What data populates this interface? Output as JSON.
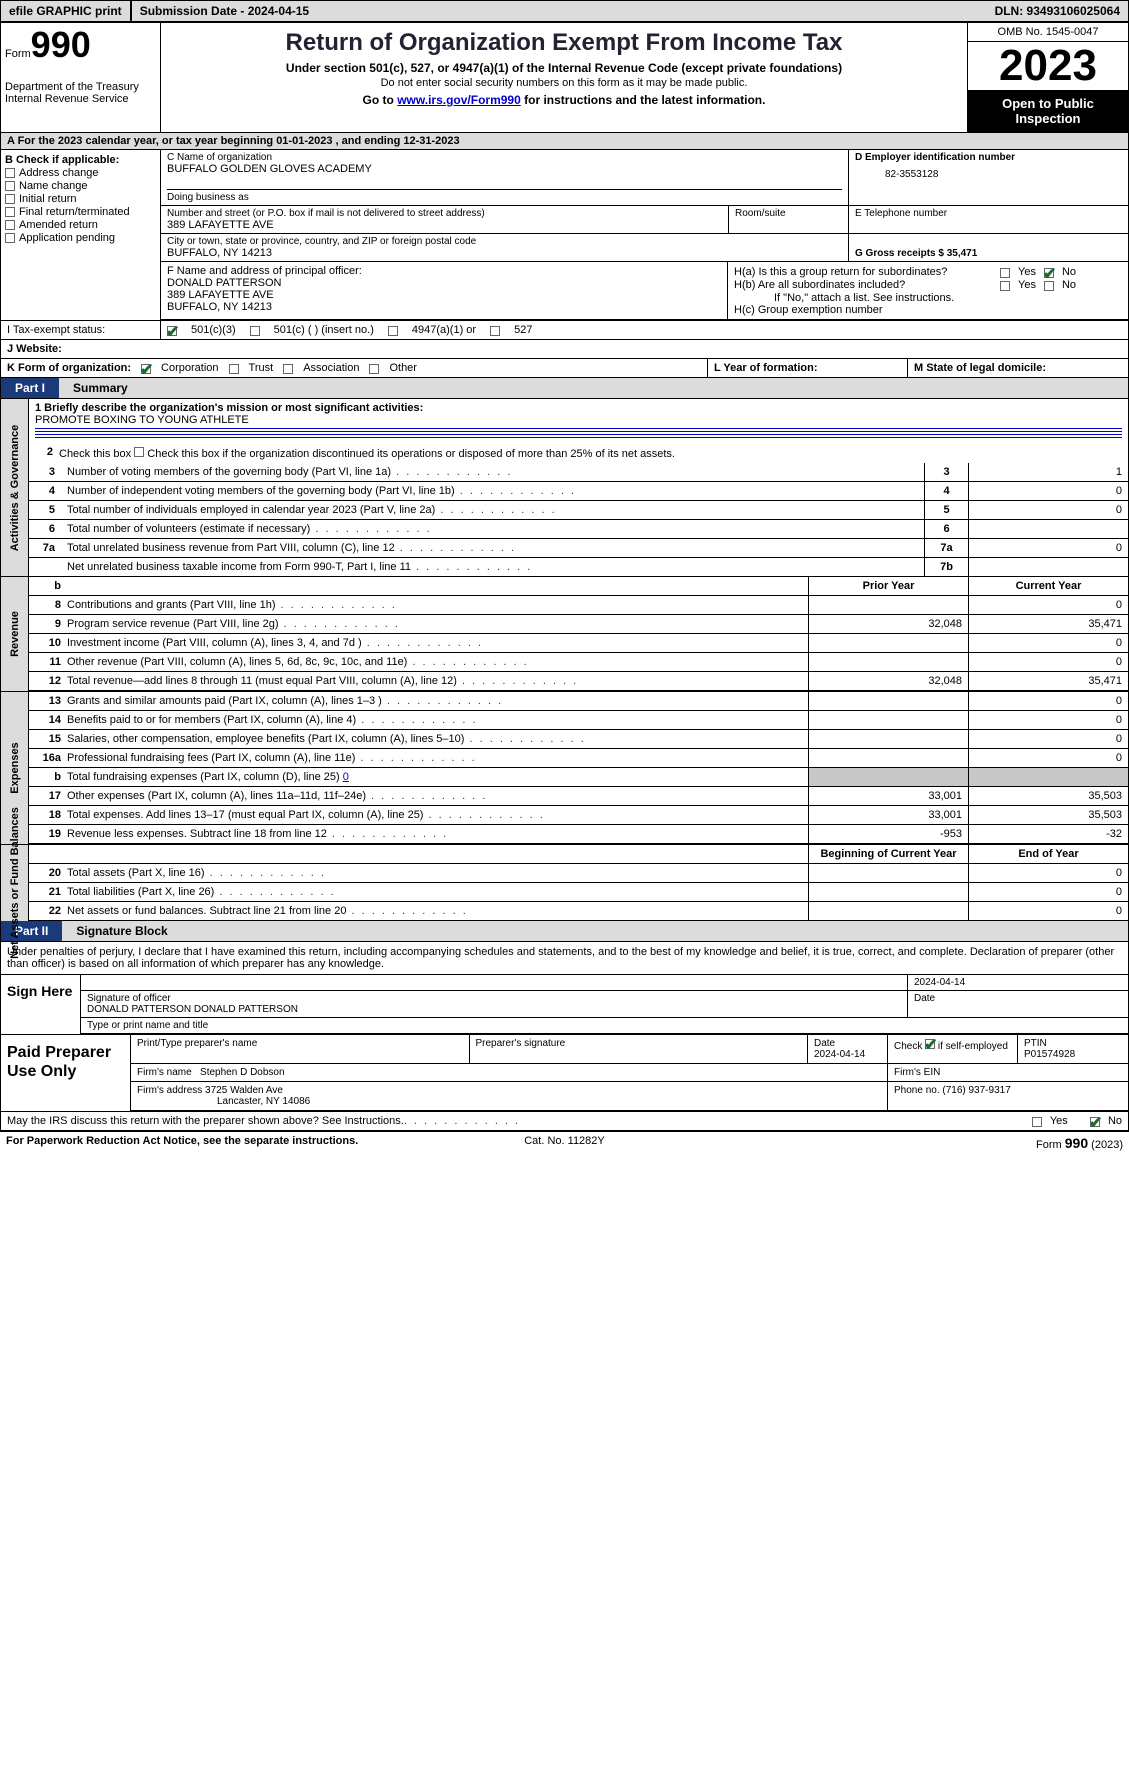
{
  "header": {
    "efile_btn": "efile GRAPHIC print",
    "submission_label": "Submission Date - 2024-04-15",
    "dln_label": "DLN: 93493106025064"
  },
  "top": {
    "form_word": "Form",
    "form_num": "990",
    "dept": "Department of the Treasury\nInternal Revenue Service",
    "title": "Return of Organization Exempt From Income Tax",
    "sub1": "Under section 501(c), 527, or 4947(a)(1) of the Internal Revenue Code (except private foundations)",
    "sub2": "Do not enter social security numbers on this form as it may be made public.",
    "sub3_pre": "Go to ",
    "sub3_link": "www.irs.gov/Form990",
    "sub3_post": " for instructions and the latest information.",
    "omb": "OMB No. 1545-0047",
    "year": "2023",
    "open_pub": "Open to Public Inspection"
  },
  "rowA": "A For the 2023 calendar year, or tax year beginning 01-01-2023   , and ending 12-31-2023",
  "colB": {
    "header": "B Check if applicable:",
    "items": [
      "Address change",
      "Name change",
      "Initial return",
      "Final return/terminated",
      "Amended return",
      "Application pending"
    ]
  },
  "boxC": {
    "name_lbl": "C Name of organization",
    "name_val": "BUFFALO GOLDEN GLOVES ACADEMY",
    "dba_lbl": "Doing business as",
    "street_lbl": "Number and street (or P.O. box if mail is not delivered to street address)",
    "street_val": "389 LAFAYETTE AVE",
    "room_lbl": "Room/suite",
    "city_lbl": "City or town, state or province, country, and ZIP or foreign postal code",
    "city_val": "BUFFALO, NY  14213"
  },
  "boxD": {
    "lbl": "D Employer identification number",
    "val": "82-3553128"
  },
  "boxE": {
    "lbl": "E Telephone number"
  },
  "boxG": {
    "lbl": "G Gross receipts $ 35,471"
  },
  "boxF": {
    "lbl": "F  Name and address of principal officer:",
    "l1": "DONALD PATTERSON",
    "l2": "389 LAFAYETTE AVE",
    "l3": "BUFFALO, NY  14213"
  },
  "boxH": {
    "ha_lbl": "H(a)  Is this a group return for subordinates?",
    "hb_lbl": "H(b)  Are all subordinates included?",
    "hb_note": "If \"No,\" attach a list. See instructions.",
    "hc_lbl": "H(c)  Group exemption number",
    "yes": "Yes",
    "no": "No"
  },
  "rowI": {
    "lbl": "I     Tax-exempt status:",
    "opts": [
      "501(c)(3)",
      "501(c) (  ) (insert no.)",
      "4947(a)(1) or",
      "527"
    ]
  },
  "rowJ": {
    "lbl": "J    Website:"
  },
  "rowK": {
    "lbl": "K Form of organization:",
    "opts": [
      "Corporation",
      "Trust",
      "Association",
      "Other"
    ]
  },
  "rowL": "L Year of formation:",
  "rowM": "M State of legal domicile:",
  "part1": {
    "tab": "Part I",
    "title": "Summary"
  },
  "ag": {
    "label": "Activities & Governance",
    "l1_pre": "1   Briefly describe the organization's mission or most significant activities:",
    "l1_val": "PROMOTE BOXING TO YOUNG ATHLETE",
    "l2": "Check this box      if the organization discontinued its operations or disposed of more than 25% of its net assets.",
    "lines": [
      {
        "n": "3",
        "t": "Number of voting members of the governing body (Part VI, line 1a)",
        "c": "3",
        "v": "1"
      },
      {
        "n": "4",
        "t": "Number of independent voting members of the governing body (Part VI, line 1b)",
        "c": "4",
        "v": "0"
      },
      {
        "n": "5",
        "t": "Total number of individuals employed in calendar year 2023 (Part V, line 2a)",
        "c": "5",
        "v": "0"
      },
      {
        "n": "6",
        "t": "Total number of volunteers (estimate if necessary)",
        "c": "6",
        "v": ""
      },
      {
        "n": "7a",
        "t": "Total unrelated business revenue from Part VIII, column (C), line 12",
        "c": "7a",
        "v": "0"
      },
      {
        "n": "",
        "t": "Net unrelated business taxable income from Form 990-T, Part I, line 11",
        "c": "7b",
        "v": ""
      }
    ]
  },
  "rev": {
    "label": "Revenue",
    "th_prior": "Prior Year",
    "th_curr": "Current Year",
    "rows": [
      {
        "n": "8",
        "t": "Contributions and grants (Part VIII, line 1h)",
        "p": "",
        "c": "0"
      },
      {
        "n": "9",
        "t": "Program service revenue (Part VIII, line 2g)",
        "p": "32,048",
        "c": "35,471"
      },
      {
        "n": "10",
        "t": "Investment income (Part VIII, column (A), lines 3, 4, and 7d )",
        "p": "",
        "c": "0"
      },
      {
        "n": "11",
        "t": "Other revenue (Part VIII, column (A), lines 5, 6d, 8c, 9c, 10c, and 11e)",
        "p": "",
        "c": "0"
      },
      {
        "n": "12",
        "t": "Total revenue—add lines 8 through 11 (must equal Part VIII, column (A), line 12)",
        "p": "32,048",
        "c": "35,471"
      }
    ]
  },
  "exp": {
    "label": "Expenses",
    "rows": [
      {
        "n": "13",
        "t": "Grants and similar amounts paid (Part IX, column (A), lines 1–3 )",
        "p": "",
        "c": "0"
      },
      {
        "n": "14",
        "t": "Benefits paid to or for members (Part IX, column (A), line 4)",
        "p": "",
        "c": "0"
      },
      {
        "n": "15",
        "t": "Salaries, other compensation, employee benefits (Part IX, column (A), lines 5–10)",
        "p": "",
        "c": "0"
      },
      {
        "n": "16a",
        "t": "Professional fundraising fees (Part IX, column (A), line 11e)",
        "p": "",
        "c": "0"
      },
      {
        "n": "b",
        "t": "Total fundraising expenses (Part IX, column (D), line 25) ",
        "p": "shade",
        "c": "shade",
        "link": "0"
      },
      {
        "n": "17",
        "t": "Other expenses (Part IX, column (A), lines 11a–11d, 11f–24e)",
        "p": "33,001",
        "c": "35,503"
      },
      {
        "n": "18",
        "t": "Total expenses. Add lines 13–17 (must equal Part IX, column (A), line 25)",
        "p": "33,001",
        "c": "35,503"
      },
      {
        "n": "19",
        "t": "Revenue less expenses. Subtract line 18 from line 12",
        "p": "-953",
        "c": "-32"
      }
    ]
  },
  "net": {
    "label": "Net Assets or Fund Balances",
    "th_beg": "Beginning of Current Year",
    "th_end": "End of Year",
    "rows": [
      {
        "n": "20",
        "t": "Total assets (Part X, line 16)",
        "p": "",
        "c": "0"
      },
      {
        "n": "21",
        "t": "Total liabilities (Part X, line 26)",
        "p": "",
        "c": "0"
      },
      {
        "n": "22",
        "t": "Net assets or fund balances. Subtract line 21 from line 20",
        "p": "",
        "c": "0"
      }
    ]
  },
  "part2": {
    "tab": "Part II",
    "title": "Signature Block"
  },
  "sig_intro": "Under penalties of perjury, I declare that I have examined this return, including accompanying schedules and statements, and to the best of my knowledge and belief, it is true, correct, and complete. Declaration of preparer (other than officer) is based on all information of which preparer has any knowledge.",
  "sign": {
    "left": "Sign Here",
    "date": "2024-04-14",
    "sig_lbl": "Signature of officer",
    "sig_val": "DONALD PATTERSON  DONALD PATTERSON",
    "date_lbl": "Date",
    "type_lbl": "Type or print name and title"
  },
  "paid": {
    "left": "Paid Preparer Use Only",
    "h1": "Print/Type preparer's name",
    "h2": "Preparer's signature",
    "h3": "Date",
    "h3v": "2024-04-14",
    "h4": "Check      if self-employed",
    "h5": "PTIN",
    "h5v": "P01574928",
    "firm_name_lbl": "Firm's name",
    "firm_name_val": "Stephen D Dobson",
    "firm_ein_lbl": "Firm's EIN",
    "firm_addr_lbl": "Firm's address",
    "firm_addr_val": "3725 Walden Ave",
    "firm_addr_val2": "Lancaster, NY  14086",
    "phone_lbl": "Phone no. (716) 937-9317"
  },
  "footer_q": "May the IRS discuss this return with the preparer shown above? See Instructions.",
  "bottom": {
    "l": "For Paperwork Reduction Act Notice, see the separate instructions.",
    "m": "Cat. No. 11282Y",
    "r_pre": "Form ",
    "r_big": "990",
    "r_post": " (2023)"
  },
  "colors": {
    "link": "#0000cc",
    "tab": "#1b3a7a",
    "check": "#1b6b2e"
  }
}
